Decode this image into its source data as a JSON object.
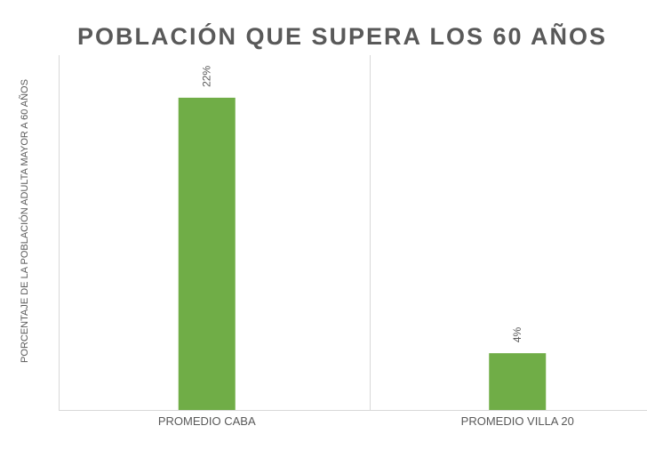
{
  "chart_data": {
    "type": "bar",
    "title": "POBLACIÓN QUE SUPERA LOS 60 AÑOS",
    "xlabel": "",
    "ylabel": "PORCENTAJE DE LA POBLACIÓN ADULTA MAYOR A 60 AÑOS",
    "categories": [
      "PROMEDIO CABA",
      "PROMEDIO VILLA 20"
    ],
    "values": [
      22,
      4
    ],
    "data_labels": [
      "22%",
      "4%"
    ],
    "ylim": [
      0,
      25
    ],
    "value_unit": "%",
    "grid": false,
    "legend": "none",
    "bar_color": "#70AD47",
    "text_color": "#595959",
    "axis_color": "#d9d9d9"
  }
}
